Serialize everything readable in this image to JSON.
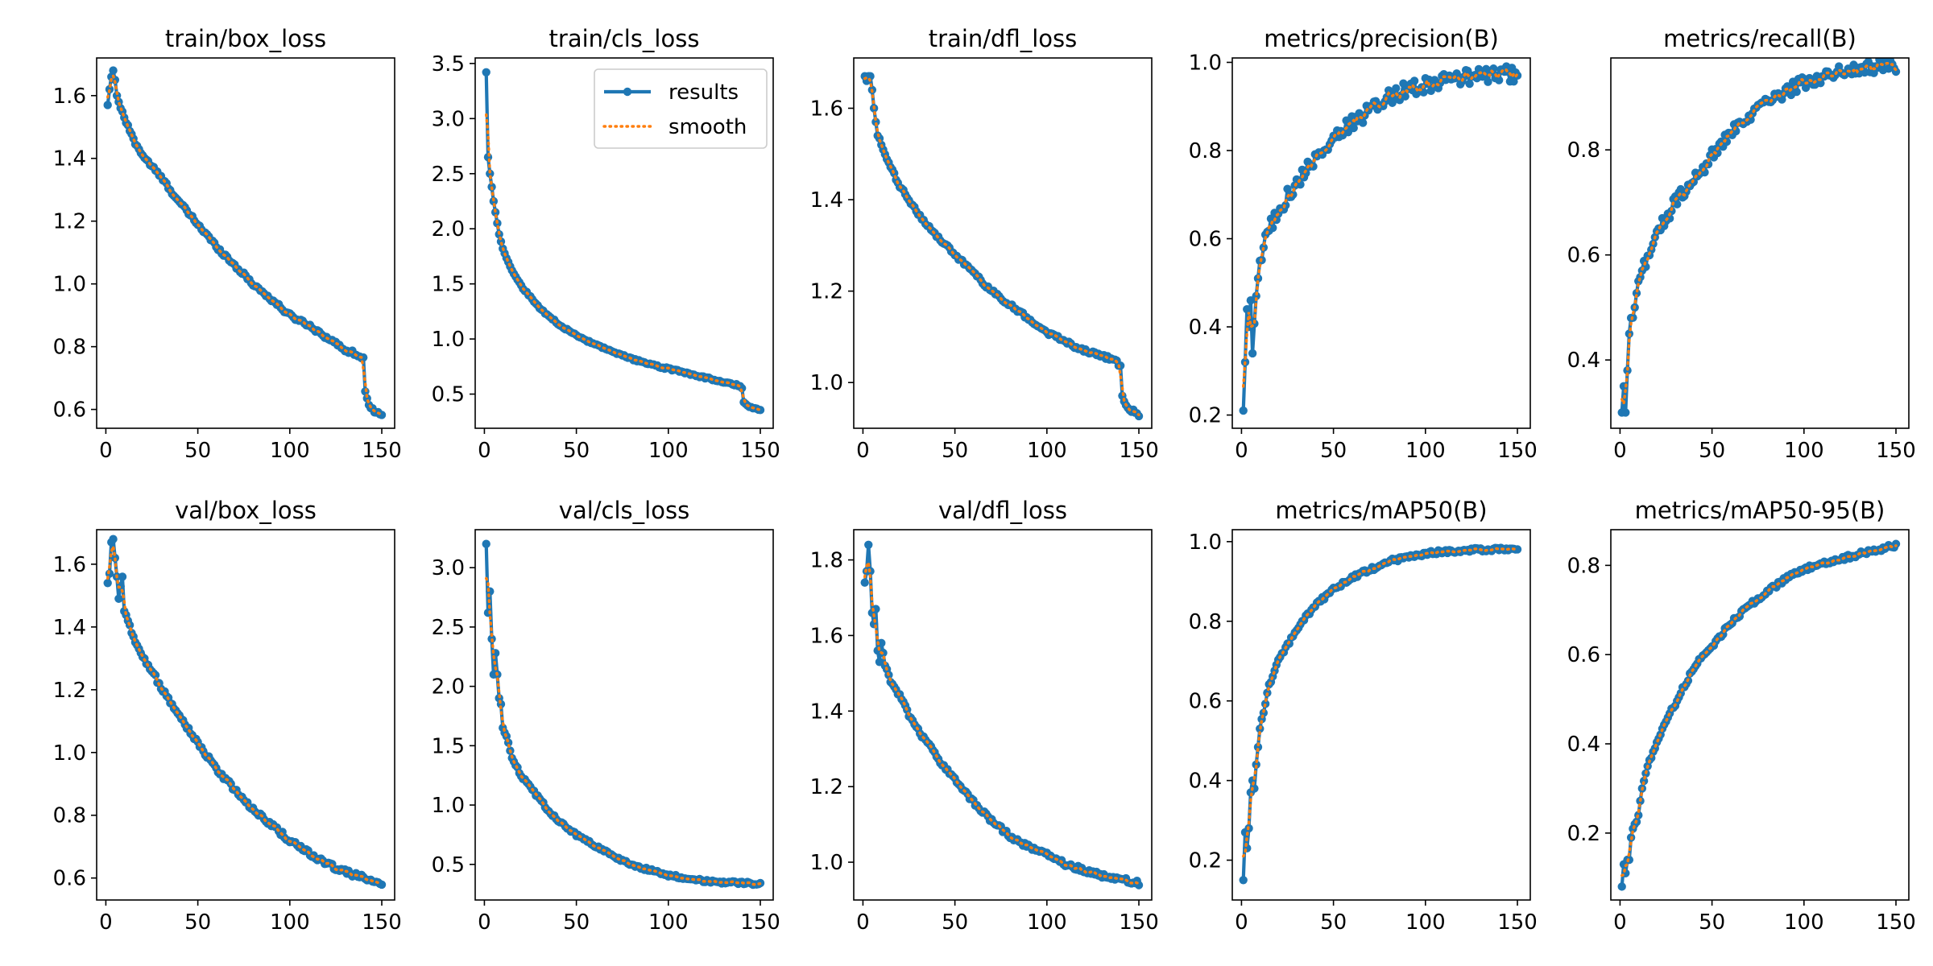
{
  "figure": {
    "rows": 2,
    "cols": 5
  },
  "colors": {
    "results": "#1f77b4",
    "smooth": "#ff7f0e",
    "axis": "#000000",
    "background": "#ffffff"
  },
  "legend": {
    "entries": [
      "results",
      "smooth"
    ],
    "placement": "upper right",
    "subplot_index": 1
  },
  "chart_data": [
    {
      "type": "line",
      "title": "train/box_loss",
      "xlabel": "",
      "ylabel": "",
      "xlim": [
        -5,
        157
      ],
      "ylim": [
        0.54,
        1.72
      ],
      "xticks": [
        0,
        50,
        100,
        150
      ],
      "xtick_labels": [
        "0",
        "50",
        "100",
        "150"
      ],
      "yticks": [
        0.6,
        0.8,
        1.0,
        1.2,
        1.4,
        1.6
      ],
      "ytick_labels": [
        "0.6",
        "0.8",
        "1.0",
        "1.2",
        "1.4",
        "1.6"
      ],
      "profile": {
        "x": [
          1,
          2,
          3,
          4,
          5,
          6,
          7,
          8,
          10,
          15,
          20,
          30,
          40,
          50,
          60,
          70,
          80,
          90,
          100,
          110,
          120,
          130,
          135,
          138,
          139,
          140,
          141,
          143,
          145,
          148,
          150
        ],
        "y": [
          1.57,
          1.62,
          1.66,
          1.68,
          1.65,
          1.6,
          1.58,
          1.56,
          1.53,
          1.46,
          1.41,
          1.34,
          1.26,
          1.19,
          1.12,
          1.06,
          1.0,
          0.95,
          0.9,
          0.87,
          0.83,
          0.79,
          0.78,
          0.77,
          0.76,
          0.76,
          0.66,
          0.62,
          0.6,
          0.59,
          0.58
        ]
      },
      "series": [
        {
          "name": "results",
          "noise": 0.006
        },
        {
          "name": "smooth"
        }
      ]
    },
    {
      "type": "line",
      "title": "train/cls_loss",
      "xlabel": "",
      "ylabel": "",
      "xlim": [
        -5,
        157
      ],
      "ylim": [
        0.19,
        3.55
      ],
      "xticks": [
        0,
        50,
        100,
        150
      ],
      "xtick_labels": [
        "0",
        "50",
        "100",
        "150"
      ],
      "yticks": [
        0.5,
        1.0,
        1.5,
        2.0,
        2.5,
        3.0,
        3.5
      ],
      "ytick_labels": [
        "0.5",
        "1.0",
        "1.5",
        "2.0",
        "2.5",
        "3.0",
        "3.5"
      ],
      "profile": {
        "x": [
          1,
          2,
          3,
          4,
          5,
          6,
          7,
          8,
          10,
          15,
          20,
          25,
          30,
          40,
          50,
          60,
          70,
          80,
          90,
          100,
          110,
          120,
          130,
          138,
          139,
          140,
          141,
          143,
          145,
          150
        ],
        "y": [
          3.42,
          2.65,
          2.5,
          2.38,
          2.25,
          2.15,
          2.05,
          1.95,
          1.82,
          1.62,
          1.48,
          1.38,
          1.28,
          1.14,
          1.03,
          0.95,
          0.88,
          0.82,
          0.77,
          0.73,
          0.69,
          0.65,
          0.61,
          0.58,
          0.57,
          0.56,
          0.42,
          0.4,
          0.38,
          0.36
        ]
      },
      "series": [
        {
          "name": "results",
          "noise": 0.008
        },
        {
          "name": "smooth"
        }
      ]
    },
    {
      "type": "line",
      "title": "train/dfl_loss",
      "xlabel": "",
      "ylabel": "",
      "xlim": [
        -5,
        157
      ],
      "ylim": [
        0.9,
        1.71
      ],
      "xticks": [
        0,
        50,
        100,
        150
      ],
      "xtick_labels": [
        "0",
        "50",
        "100",
        "150"
      ],
      "yticks": [
        1.0,
        1.2,
        1.4,
        1.6
      ],
      "ytick_labels": [
        "1.0",
        "1.2",
        "1.4",
        "1.6"
      ],
      "profile": {
        "x": [
          1,
          2,
          3,
          4,
          5,
          6,
          7,
          8,
          10,
          15,
          20,
          30,
          40,
          50,
          60,
          70,
          80,
          90,
          100,
          110,
          120,
          130,
          135,
          138,
          139,
          140,
          141,
          143,
          145,
          148,
          150
        ],
        "y": [
          1.67,
          1.66,
          1.67,
          1.67,
          1.64,
          1.6,
          1.57,
          1.54,
          1.52,
          1.47,
          1.43,
          1.37,
          1.32,
          1.28,
          1.24,
          1.2,
          1.17,
          1.14,
          1.11,
          1.09,
          1.07,
          1.06,
          1.05,
          1.05,
          1.04,
          1.04,
          0.97,
          0.95,
          0.94,
          0.935,
          0.93
        ]
      },
      "series": [
        {
          "name": "results",
          "noise": 0.004
        },
        {
          "name": "smooth"
        }
      ]
    },
    {
      "type": "line",
      "title": "metrics/precision(B)",
      "xlabel": "",
      "ylabel": "",
      "xlim": [
        -5,
        157
      ],
      "ylim": [
        0.17,
        1.01
      ],
      "xticks": [
        0,
        50,
        100,
        150
      ],
      "xtick_labels": [
        "0",
        "50",
        "100",
        "150"
      ],
      "yticks": [
        0.2,
        0.4,
        0.6,
        0.8,
        1.0
      ],
      "ytick_labels": [
        "0.2",
        "0.4",
        "0.6",
        "0.8",
        "1.0"
      ],
      "profile": {
        "x": [
          1,
          2,
          3,
          4,
          5,
          6,
          8,
          10,
          12,
          15,
          20,
          25,
          30,
          35,
          40,
          45,
          50,
          60,
          70,
          80,
          90,
          100,
          110,
          120,
          130,
          140,
          150
        ],
        "y": [
          0.21,
          0.32,
          0.44,
          0.4,
          0.46,
          0.34,
          0.47,
          0.55,
          0.58,
          0.62,
          0.66,
          0.7,
          0.72,
          0.76,
          0.78,
          0.8,
          0.83,
          0.86,
          0.89,
          0.92,
          0.94,
          0.95,
          0.96,
          0.965,
          0.97,
          0.972,
          0.975
        ]
      },
      "series": [
        {
          "name": "results",
          "noise": 0.018
        },
        {
          "name": "smooth"
        }
      ]
    },
    {
      "type": "line",
      "title": "metrics/recall(B)",
      "xlabel": "",
      "ylabel": "",
      "xlim": [
        -5,
        157
      ],
      "ylim": [
        0.27,
        0.975
      ],
      "xticks": [
        0,
        50,
        100,
        150
      ],
      "xtick_labels": [
        "0",
        "50",
        "100",
        "150"
      ],
      "yticks": [
        0.4,
        0.6,
        0.8
      ],
      "ytick_labels": [
        "0.4",
        "0.6",
        "0.8"
      ],
      "profile": {
        "x": [
          1,
          2,
          3,
          4,
          5,
          6,
          8,
          10,
          12,
          15,
          20,
          25,
          30,
          35,
          40,
          45,
          50,
          60,
          70,
          80,
          90,
          100,
          110,
          120,
          130,
          140,
          150
        ],
        "y": [
          0.3,
          0.35,
          0.3,
          0.38,
          0.45,
          0.48,
          0.5,
          0.55,
          0.57,
          0.6,
          0.64,
          0.67,
          0.7,
          0.72,
          0.74,
          0.76,
          0.79,
          0.83,
          0.86,
          0.89,
          0.91,
          0.93,
          0.94,
          0.95,
          0.955,
          0.96,
          0.96
        ]
      },
      "series": [
        {
          "name": "results",
          "noise": 0.013
        },
        {
          "name": "smooth"
        }
      ]
    },
    {
      "type": "line",
      "title": "val/box_loss",
      "xlabel": "",
      "ylabel": "",
      "xlim": [
        -5,
        157
      ],
      "ylim": [
        0.53,
        1.71
      ],
      "xticks": [
        0,
        50,
        100,
        150
      ],
      "xtick_labels": [
        "0",
        "50",
        "100",
        "150"
      ],
      "yticks": [
        0.6,
        0.8,
        1.0,
        1.2,
        1.4,
        1.6
      ],
      "ytick_labels": [
        "0.6",
        "0.8",
        "1.0",
        "1.2",
        "1.4",
        "1.6"
      ],
      "profile": {
        "x": [
          1,
          2,
          3,
          4,
          5,
          6,
          7,
          8,
          9,
          10,
          12,
          15,
          20,
          25,
          30,
          40,
          50,
          60,
          70,
          80,
          90,
          100,
          110,
          120,
          130,
          140,
          150
        ],
        "y": [
          1.54,
          1.57,
          1.67,
          1.68,
          1.62,
          1.56,
          1.49,
          1.53,
          1.56,
          1.45,
          1.42,
          1.37,
          1.31,
          1.26,
          1.21,
          1.12,
          1.03,
          0.95,
          0.88,
          0.82,
          0.77,
          0.72,
          0.68,
          0.645,
          0.62,
          0.6,
          0.58
        ]
      },
      "series": [
        {
          "name": "results",
          "noise": 0.008
        },
        {
          "name": "smooth"
        }
      ]
    },
    {
      "type": "line",
      "title": "val/cls_loss",
      "xlabel": "",
      "ylabel": "",
      "xlim": [
        -5,
        157
      ],
      "ylim": [
        0.2,
        3.32
      ],
      "xticks": [
        0,
        50,
        100,
        150
      ],
      "xtick_labels": [
        "0",
        "50",
        "100",
        "150"
      ],
      "yticks": [
        0.5,
        1.0,
        1.5,
        2.0,
        2.5,
        3.0
      ],
      "ytick_labels": [
        "0.5",
        "1.0",
        "1.5",
        "2.0",
        "2.5",
        "3.0"
      ],
      "profile": {
        "x": [
          1,
          2,
          3,
          4,
          5,
          6,
          7,
          8,
          9,
          10,
          12,
          15,
          20,
          25,
          30,
          35,
          40,
          50,
          60,
          70,
          80,
          90,
          100,
          110,
          120,
          130,
          140,
          150
        ],
        "y": [
          3.2,
          2.62,
          2.8,
          2.4,
          2.1,
          2.28,
          2.1,
          1.9,
          1.85,
          1.65,
          1.58,
          1.4,
          1.25,
          1.15,
          1.05,
          0.95,
          0.87,
          0.75,
          0.66,
          0.57,
          0.5,
          0.45,
          0.41,
          0.385,
          0.36,
          0.35,
          0.345,
          0.335
        ]
      },
      "series": [
        {
          "name": "results",
          "noise": 0.012
        },
        {
          "name": "smooth"
        }
      ]
    },
    {
      "type": "line",
      "title": "val/dfl_loss",
      "xlabel": "",
      "ylabel": "",
      "xlim": [
        -5,
        157
      ],
      "ylim": [
        0.9,
        1.88
      ],
      "xticks": [
        0,
        50,
        100,
        150
      ],
      "xtick_labels": [
        "0",
        "50",
        "100",
        "150"
      ],
      "yticks": [
        1.0,
        1.2,
        1.4,
        1.6,
        1.8
      ],
      "ytick_labels": [
        "1.0",
        "1.2",
        "1.4",
        "1.6",
        "1.8"
      ],
      "profile": {
        "x": [
          1,
          2,
          3,
          4,
          5,
          6,
          7,
          8,
          9,
          10,
          12,
          15,
          20,
          25,
          30,
          40,
          50,
          60,
          70,
          80,
          90,
          100,
          110,
          120,
          130,
          140,
          150
        ],
        "y": [
          1.74,
          1.77,
          1.84,
          1.77,
          1.66,
          1.63,
          1.67,
          1.56,
          1.53,
          1.58,
          1.52,
          1.48,
          1.44,
          1.39,
          1.35,
          1.28,
          1.22,
          1.16,
          1.11,
          1.07,
          1.04,
          1.02,
          0.995,
          0.98,
          0.965,
          0.955,
          0.945
        ]
      },
      "series": [
        {
          "name": "results",
          "noise": 0.006
        },
        {
          "name": "smooth"
        }
      ]
    },
    {
      "type": "line",
      "title": "metrics/mAP50(B)",
      "xlabel": "",
      "ylabel": "",
      "xlim": [
        -5,
        157
      ],
      "ylim": [
        0.1,
        1.03
      ],
      "xticks": [
        0,
        50,
        100,
        150
      ],
      "xtick_labels": [
        "0",
        "50",
        "100",
        "150"
      ],
      "yticks": [
        0.2,
        0.4,
        0.6,
        0.8,
        1.0
      ],
      "ytick_labels": [
        "0.2",
        "0.4",
        "0.6",
        "0.8",
        "1.0"
      ],
      "profile": {
        "x": [
          1,
          2,
          3,
          4,
          5,
          6,
          7,
          8,
          10,
          12,
          15,
          20,
          25,
          30,
          40,
          50,
          60,
          70,
          80,
          90,
          100,
          110,
          120,
          130,
          140,
          150
        ],
        "y": [
          0.15,
          0.27,
          0.23,
          0.28,
          0.37,
          0.4,
          0.38,
          0.44,
          0.53,
          0.57,
          0.64,
          0.7,
          0.74,
          0.78,
          0.84,
          0.88,
          0.91,
          0.93,
          0.95,
          0.962,
          0.97,
          0.975,
          0.978,
          0.98,
          0.982,
          0.983
        ]
      },
      "series": [
        {
          "name": "results",
          "noise": 0.005
        },
        {
          "name": "smooth"
        }
      ]
    },
    {
      "type": "line",
      "title": "metrics/mAP50-95(B)",
      "xlabel": "",
      "ylabel": "",
      "xlim": [
        -5,
        157
      ],
      "ylim": [
        0.05,
        0.88
      ],
      "xticks": [
        0,
        50,
        100,
        150
      ],
      "xtick_labels": [
        "0",
        "50",
        "100",
        "150"
      ],
      "yticks": [
        0.2,
        0.4,
        0.6,
        0.8
      ],
      "ytick_labels": [
        "0.2",
        "0.4",
        "0.6",
        "0.8"
      ],
      "profile": {
        "x": [
          1,
          2,
          3,
          4,
          5,
          6,
          8,
          10,
          12,
          15,
          20,
          25,
          30,
          40,
          50,
          60,
          70,
          80,
          90,
          100,
          110,
          120,
          130,
          140,
          150
        ],
        "y": [
          0.08,
          0.13,
          0.11,
          0.14,
          0.14,
          0.19,
          0.22,
          0.24,
          0.3,
          0.35,
          0.4,
          0.45,
          0.49,
          0.57,
          0.62,
          0.67,
          0.71,
          0.74,
          0.77,
          0.79,
          0.805,
          0.815,
          0.825,
          0.835,
          0.845
        ]
      },
      "series": [
        {
          "name": "results",
          "noise": 0.005
        },
        {
          "name": "smooth"
        }
      ]
    }
  ]
}
